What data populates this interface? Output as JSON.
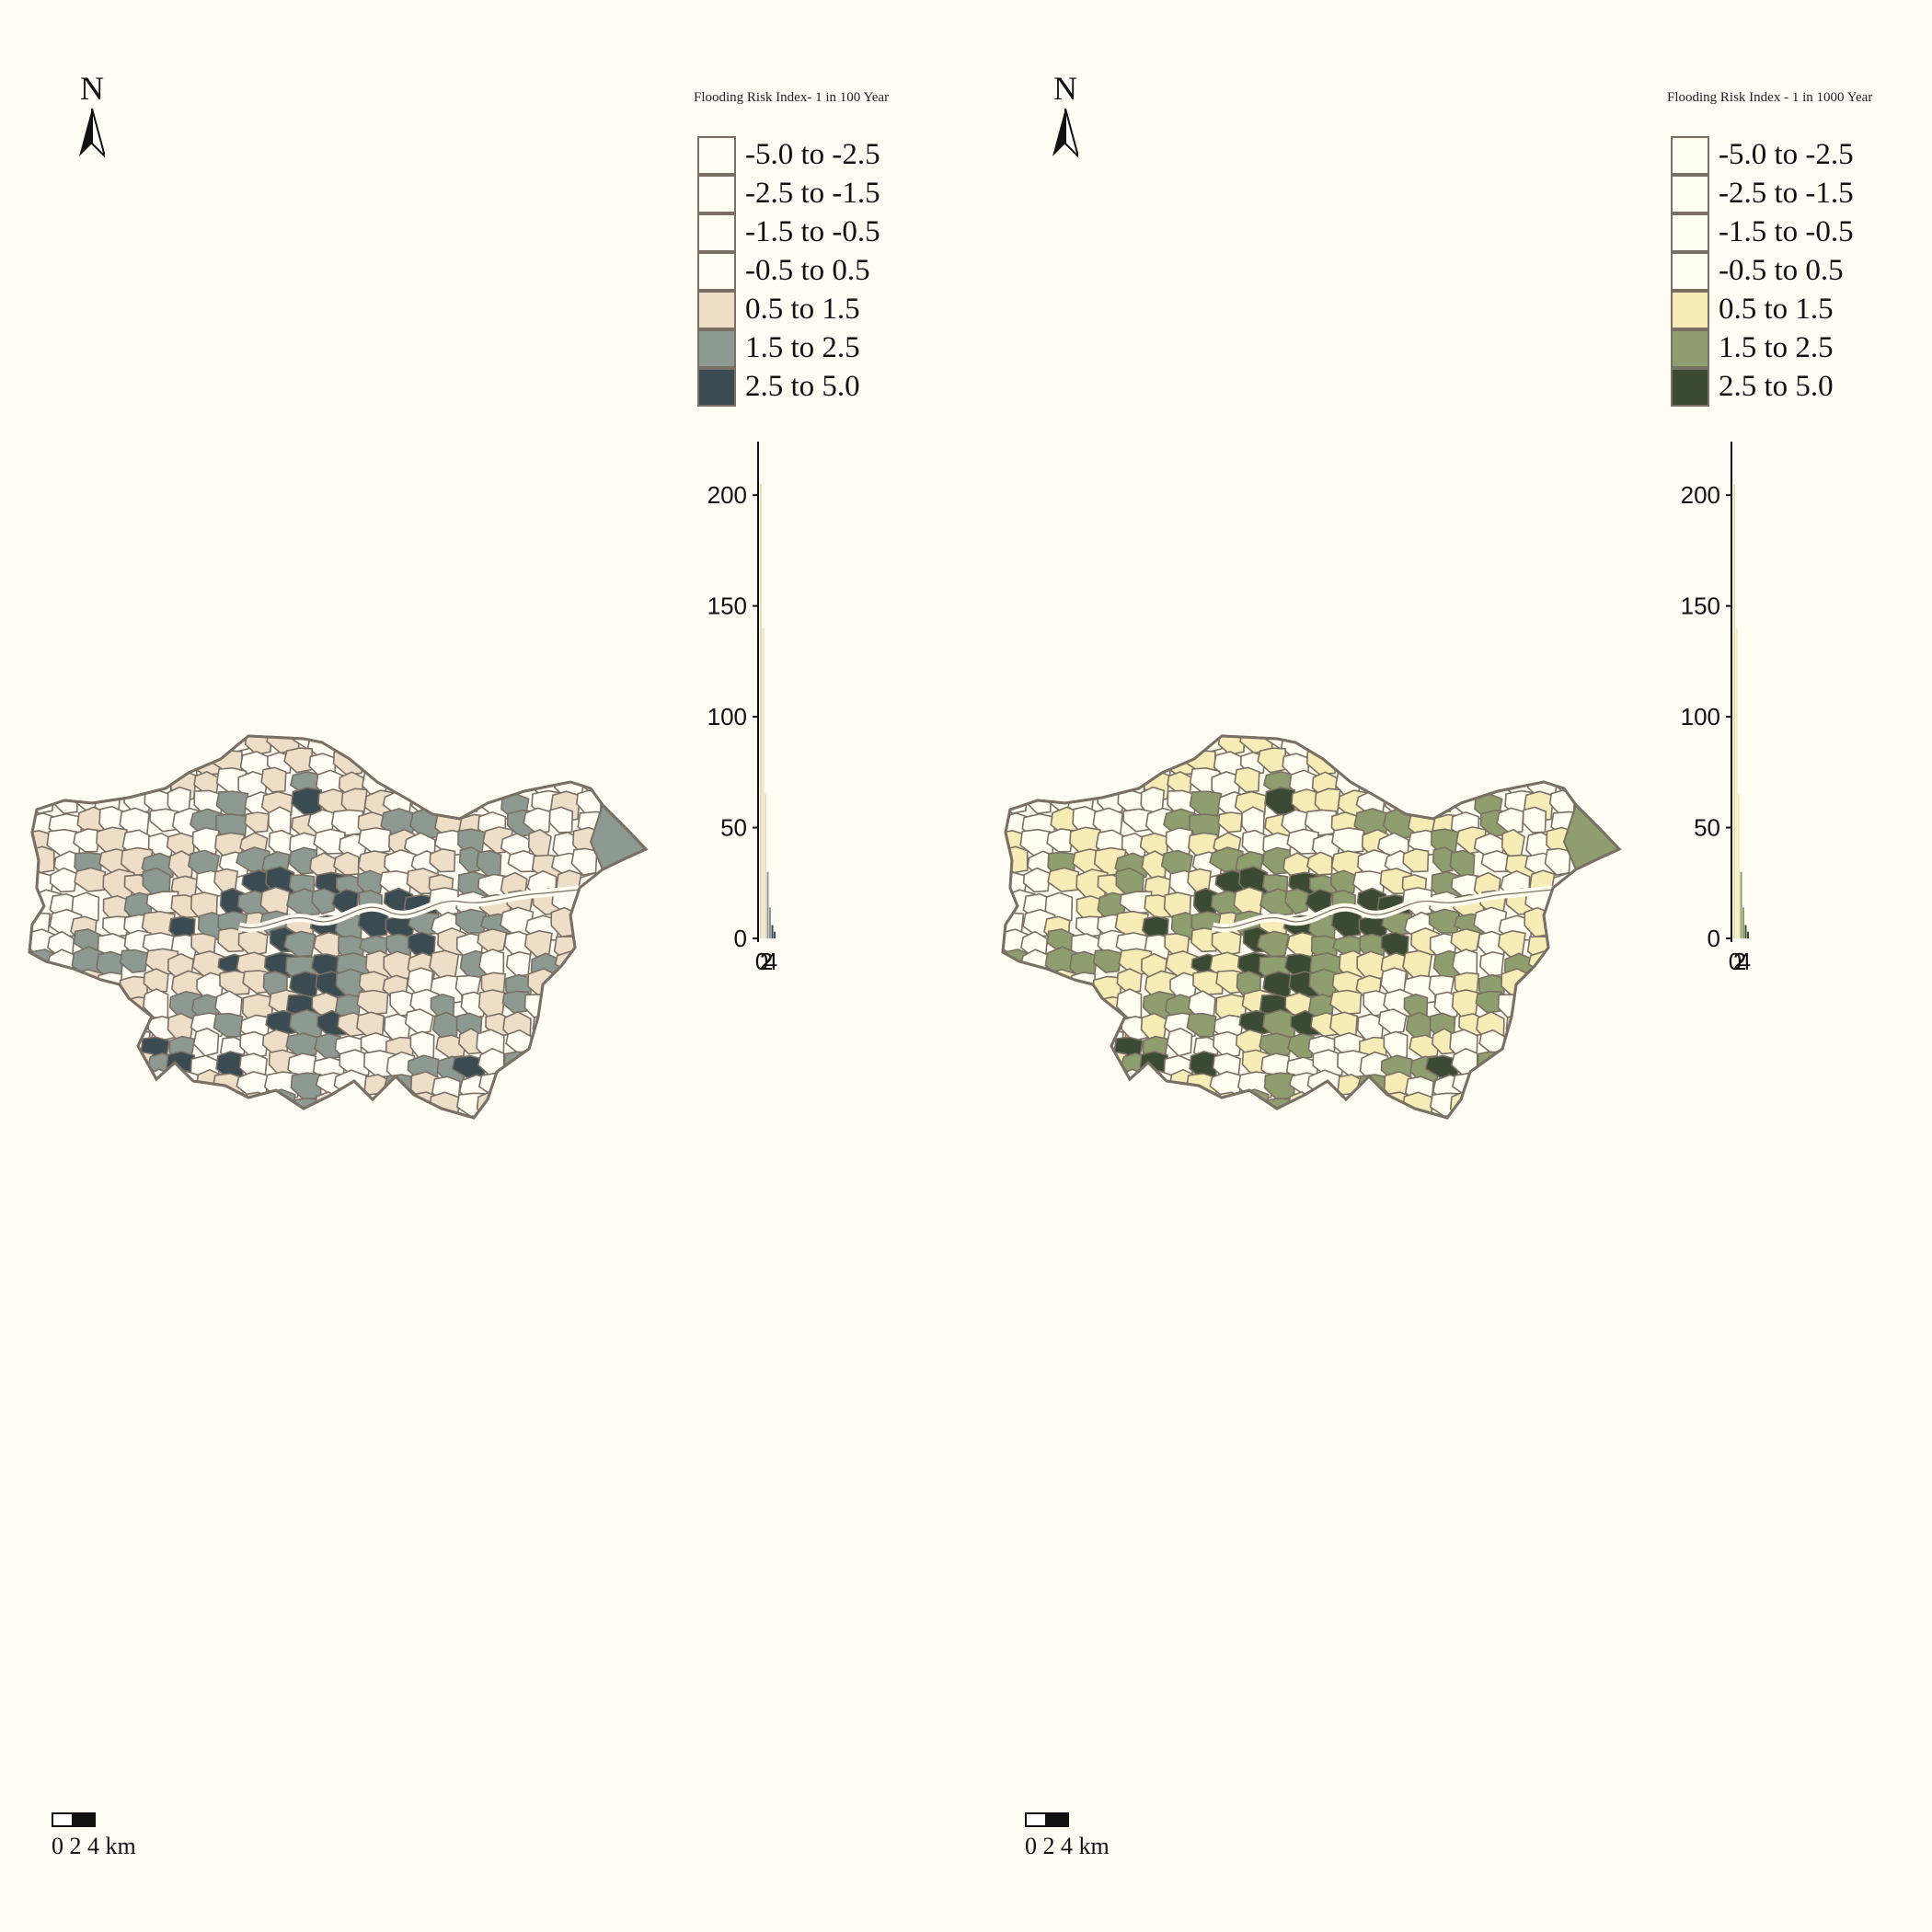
{
  "panels": [
    {
      "legend_title": "Flooding Risk Index- 1 in 100 Year",
      "north_label": "N",
      "scale_label": "0 2 4  km",
      "legend": [
        {
          "label": "-5.0 to -2.5",
          "color": "#fffdf3"
        },
        {
          "label": "-2.5 to -1.5",
          "color": "#fffdf3"
        },
        {
          "label": "-1.5 to -0.5",
          "color": "#fffdf3"
        },
        {
          "label": "-0.5 to 0.5",
          "color": "#fffdf3"
        },
        {
          "label": "0.5 to 1.5",
          "color": "#eedec8"
        },
        {
          "label": "1.5 to 2.5",
          "color": "#8c9a92"
        },
        {
          "label": "2.5 to 5.0",
          "color": "#3b4b52"
        }
      ],
      "histogram": {
        "y_ticks": [
          "0",
          "50",
          "100",
          "150",
          "200"
        ],
        "x_ticks": [
          "0",
          "2",
          "4"
        ],
        "ylim": [
          0,
          220
        ],
        "values": [
          205,
          140,
          65,
          30,
          14,
          6,
          3
        ]
      },
      "map_colors": {
        "land": "#fffdf3",
        "low": "#eedec8",
        "mid": "#8c9a92",
        "high": "#3b4b52",
        "border": "#7a6f64"
      }
    },
    {
      "legend_title": "Flooding Risk Index - 1 in 1000 Year",
      "north_label": "N",
      "scale_label": "0 2 4  km",
      "legend": [
        {
          "label": "-5.0 to -2.5",
          "color": "#fffdf0"
        },
        {
          "label": "-2.5 to -1.5",
          "color": "#fffdf0"
        },
        {
          "label": "-1.5 to -0.5",
          "color": "#fffdf0"
        },
        {
          "label": "-0.5 to 0.5",
          "color": "#fffdf0"
        },
        {
          "label": "0.5 to 1.5",
          "color": "#f7ebb6"
        },
        {
          "label": "1.5 to 2.5",
          "color": "#8e9e6e"
        },
        {
          "label": "2.5 to 5.0",
          "color": "#3a4a33"
        }
      ],
      "histogram": {
        "y_ticks": [
          "0",
          "50",
          "100",
          "150",
          "200"
        ],
        "x_ticks": [
          "0",
          "2",
          "4"
        ],
        "ylim": [
          0,
          220
        ],
        "values": [
          205,
          140,
          65,
          30,
          14,
          6,
          3
        ]
      },
      "map_colors": {
        "land": "#fffdf0",
        "low": "#f7ebb6",
        "mid": "#8e9e6e",
        "high": "#3a4a33",
        "border": "#7a6f64"
      }
    }
  ]
}
